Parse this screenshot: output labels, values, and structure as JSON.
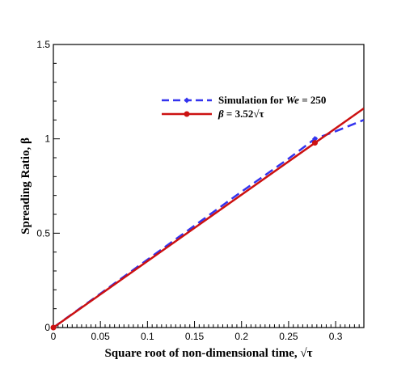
{
  "chart_data": {
    "type": "line",
    "title": "",
    "xlabel": "Square root of non-dimensional time, √τ",
    "ylabel": "Spreading Ratio, β",
    "xlim": [
      0,
      0.33
    ],
    "ylim": [
      0,
      1.5
    ],
    "x_ticks": [
      "0",
      "0.05",
      "0.1",
      "0.15",
      "0.2",
      "0.25",
      "0.3"
    ],
    "y_ticks": [
      "0",
      "0.5",
      "1",
      "1.5"
    ],
    "x_tick_values": [
      0,
      0.05,
      0.1,
      0.15,
      0.2,
      0.25,
      0.3
    ],
    "y_tick_values": [
      0,
      0.5,
      1,
      1.5
    ],
    "grid": false,
    "legend_position": "top-right",
    "series": [
      {
        "name": "Simulation for We = 250",
        "color": "#3333ee",
        "style": "dashed",
        "marker": "diamond",
        "x": [
          0,
          0.05,
          0.1,
          0.15,
          0.2,
          0.25,
          0.278,
          0.3,
          0.33
        ],
        "y": [
          0,
          0.18,
          0.36,
          0.54,
          0.72,
          0.895,
          1.0,
          1.04,
          1.1
        ],
        "marker_points": [
          {
            "x": 0,
            "y": 0
          },
          {
            "x": 0.278,
            "y": 1.0
          }
        ]
      },
      {
        "name": "β = 3.52√τ",
        "color": "#cc1111",
        "style": "solid",
        "marker": "circle",
        "x": [
          0,
          0.33
        ],
        "y": [
          0,
          1.1616
        ],
        "marker_points": [
          {
            "x": 0,
            "y": 0
          },
          {
            "x": 0.278,
            "y": 0.979
          }
        ]
      }
    ],
    "legend_labels": {
      "sim_prefix": "Simulation for ",
      "sim_italic": "We",
      "sim_suffix": " = 250",
      "fit_beta": "β",
      "fit_rest": " = 3.52√τ"
    }
  }
}
